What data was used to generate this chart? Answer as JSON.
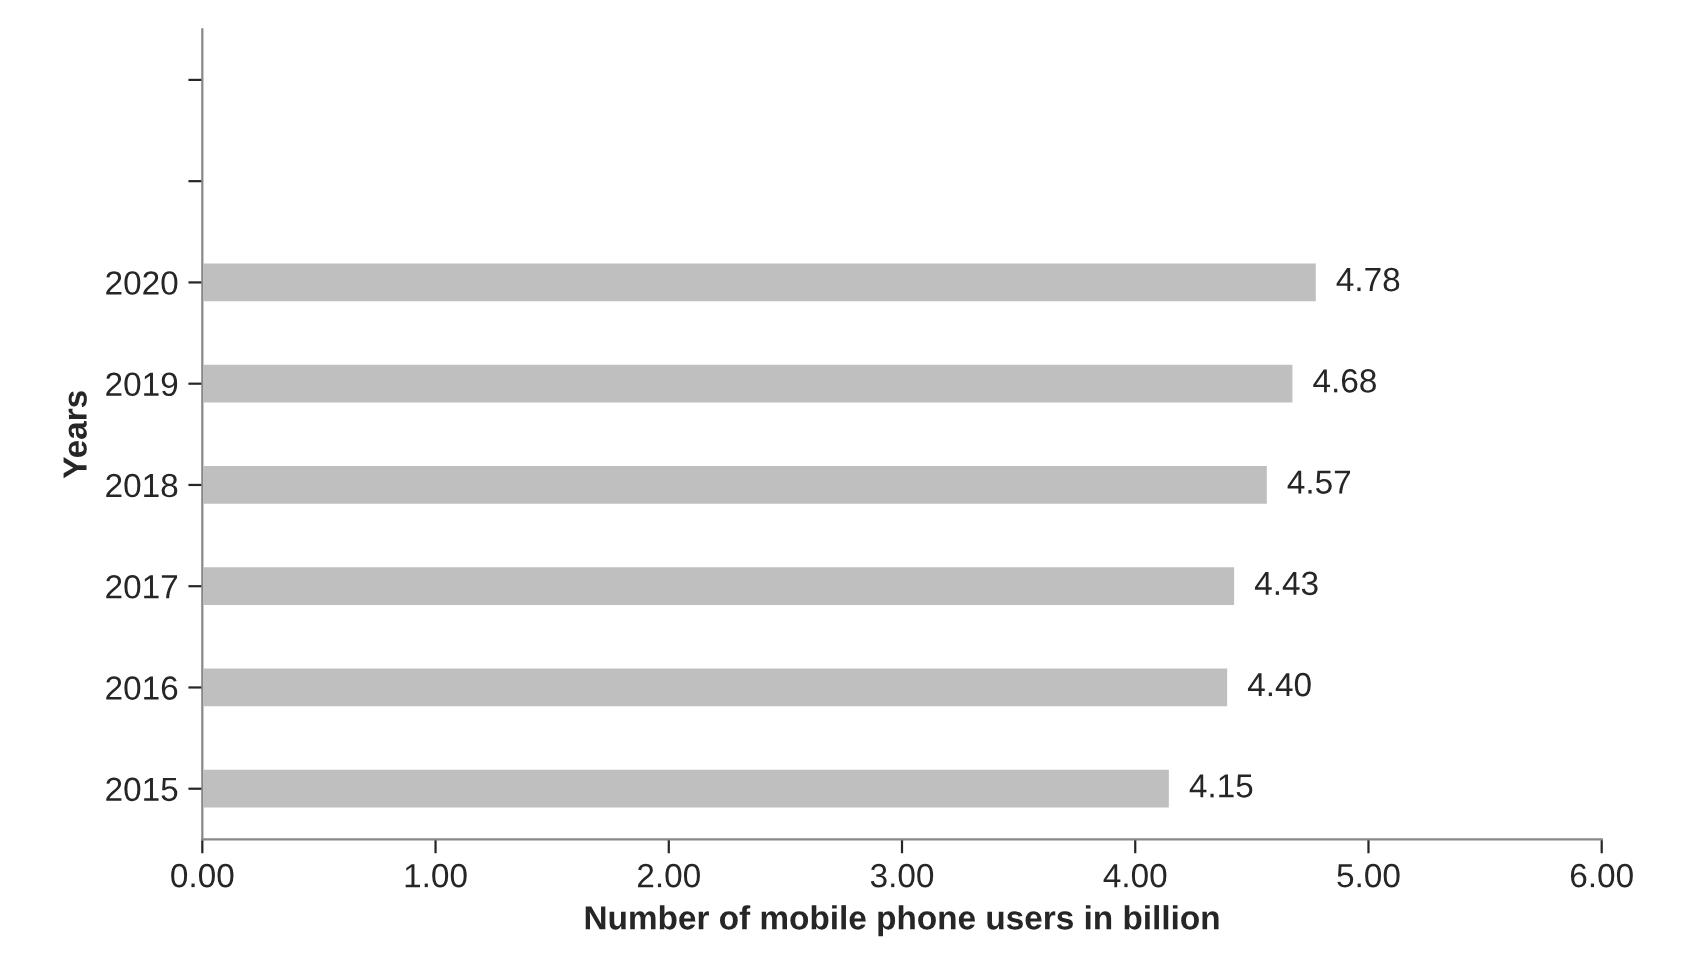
{
  "chart_data": {
    "type": "bar",
    "orientation": "horizontal",
    "xlabel": "Number of mobile phone users in billion",
    "ylabel": "Years",
    "categories": [
      null,
      null,
      "2020",
      "2019",
      "2018",
      "2017",
      "2016",
      "2015"
    ],
    "values": [
      null,
      null,
      4.78,
      4.68,
      4.57,
      4.43,
      4.4,
      4.15
    ],
    "value_labels": [
      null,
      null,
      "4.78",
      "4.68",
      "4.57",
      "4.43",
      "4.40",
      "4.15"
    ],
    "color": "#bfbfbf",
    "xlim": [
      0,
      6
    ],
    "xticks": [
      {
        "value": 0,
        "label": "0.00"
      },
      {
        "value": 1,
        "label": "1.00"
      },
      {
        "value": 2,
        "label": "2.00"
      },
      {
        "value": 3,
        "label": "3.00"
      },
      {
        "value": 4,
        "label": "4.00"
      },
      {
        "value": 5,
        "label": "5.00"
      },
      {
        "value": 6,
        "label": "6.00"
      }
    ],
    "grid": false,
    "legend": false
  }
}
